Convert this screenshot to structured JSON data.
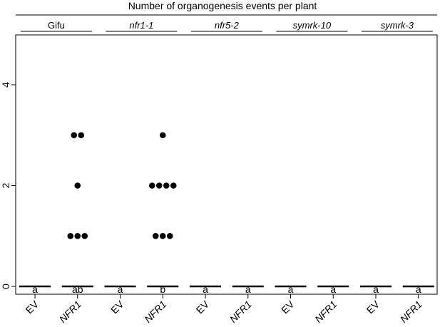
{
  "chart_data": {
    "type": "scatter",
    "title": "Number of organogenesis events per plant",
    "xlabel": "",
    "ylabel": "",
    "ylim": [
      0,
      5
    ],
    "yticks": [
      0,
      2,
      4
    ],
    "grid": false,
    "genotypes": [
      "Gifu",
      "nfr1-1",
      "nfr5-2",
      "symrk-10",
      "symrk-3"
    ],
    "genotype_italic": [
      false,
      true,
      true,
      true,
      true
    ],
    "categories": [
      {
        "genotype": "Gifu",
        "label": "EV",
        "letter": "a"
      },
      {
        "genotype": "Gifu",
        "label": "NFR1",
        "letter": "ab"
      },
      {
        "genotype": "nfr1-1",
        "label": "EV",
        "letter": "a"
      },
      {
        "genotype": "nfr1-1",
        "label": "NFR1",
        "letter": "b"
      },
      {
        "genotype": "nfr5-2",
        "label": "EV",
        "letter": "a"
      },
      {
        "genotype": "nfr5-2",
        "label": "NFR1",
        "letter": "a"
      },
      {
        "genotype": "symrk-10",
        "label": "EV",
        "letter": "a"
      },
      {
        "genotype": "symrk-10",
        "label": "NFR1",
        "letter": "a"
      },
      {
        "genotype": "symrk-3",
        "label": "EV",
        "letter": "a"
      },
      {
        "genotype": "symrk-3",
        "label": "NFR1",
        "letter": "a"
      }
    ],
    "label_italic": [
      false,
      true,
      false,
      true,
      false,
      true,
      false,
      true,
      false,
      true
    ],
    "median": [
      0,
      0,
      0,
      0,
      0,
      0,
      0,
      0,
      0,
      0
    ],
    "points": [
      [],
      [
        {
          "y": 3,
          "n": 2
        },
        {
          "y": 2,
          "n": 1
        },
        {
          "y": 1,
          "n": 3
        }
      ],
      [],
      [
        {
          "y": 3,
          "n": 1
        },
        {
          "y": 2,
          "n": 4
        },
        {
          "y": 1,
          "n": 3
        }
      ],
      [],
      [],
      [],
      [],
      [],
      []
    ]
  }
}
